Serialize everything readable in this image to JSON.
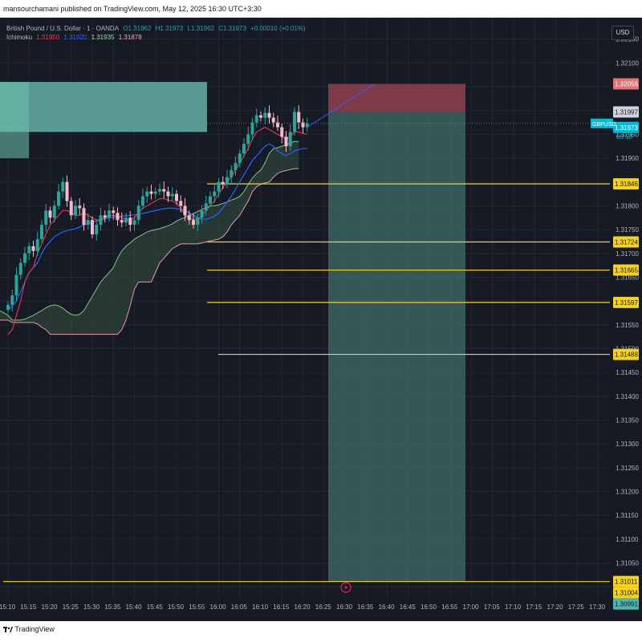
{
  "publisher_line": "mansourchamani published on TradingView.com, May 12, 2025 16:30 UTC+3:30",
  "legend": {
    "symbol_line": "British Pound / U.S. Dollar · 1 · OANDA",
    "ohlc": {
      "o": "O1.31962",
      "h": "H1.31973",
      "l": "L1.31962",
      "c": "C1.31973",
      "chg": "+0.00010 (+0.01%)"
    },
    "ichimoku_label": "Ichimoku",
    "ichimoku_values": [
      "1.31950",
      "1.31920",
      "1.31935",
      "1.31878"
    ]
  },
  "currency_button": "USD",
  "footer_brand": "TradingView",
  "price_badges": {
    "stop": "1.32056",
    "last": "1.31997",
    "symbol": "GBPUSD",
    "current": "1.31973",
    "countdown": "00:53",
    "bottom": [
      "1.31011",
      "1.31004",
      "1.30991"
    ]
  },
  "colors": {
    "background": "#161a25",
    "bull_candle": "#26a69a",
    "bear_candle": "#f7b8c8",
    "tenkan": "#e53950",
    "kijun": "#2962ff",
    "span_a": "#81c784",
    "span_b": "#e89aa4",
    "horizontal_level": "#f5d31c",
    "target_zone": "#4e8d84",
    "stop_zone": "#a04655",
    "demand_zone": "#6fc5b5"
  },
  "chart_data": {
    "type": "candlestick",
    "symbol": "GBPUSD",
    "timeframe": "1",
    "y_axis": {
      "ylim": [
        1.3097,
        1.32195
      ],
      "tick_labels": [
        "1.32150",
        "1.32100",
        "1.32050",
        "1.32000",
        "1.31950",
        "1.31900",
        "1.31850",
        "1.31800",
        "1.31750",
        "1.31700",
        "1.31650",
        "1.31600",
        "1.31550",
        "1.31500",
        "1.31450",
        "1.31400",
        "1.31350",
        "1.31300",
        "1.31250",
        "1.31200",
        "1.31150",
        "1.31100",
        "1.31050",
        "1.31000"
      ]
    },
    "x_axis": {
      "tick_labels": [
        "15:10",
        "15:15",
        "15:20",
        "15:25",
        "15:30",
        "15:35",
        "15:40",
        "15:45",
        "15:50",
        "15:55",
        "16:00",
        "16:05",
        "16:10",
        "16:15",
        "16:20",
        "16:25",
        "16:30",
        "16:35",
        "16:40",
        "16:45",
        "16:50",
        "16:55",
        "17:00",
        "17:05",
        "17:10",
        "17:15",
        "17:20",
        "17:25",
        "17:30"
      ],
      "start_minute": 0,
      "first_tick_minute": 0
    },
    "candles_close": [
      1.31592,
      1.31612,
      1.31655,
      1.3168,
      1.317,
      1.31715,
      1.31705,
      1.3173,
      1.3176,
      1.3179,
      1.31775,
      1.318,
      1.3183,
      1.3185,
      1.3181,
      1.3178,
      1.318,
      1.31795,
      1.3176,
      1.3177,
      1.3174,
      1.3176,
      1.3178,
      1.31775,
      1.3179,
      1.31785,
      1.3177,
      1.31765,
      1.31775,
      1.3176,
      1.3177,
      1.318,
      1.3182,
      1.3183,
      1.31825,
      1.3183,
      1.31835,
      1.3183,
      1.3182,
      1.31825,
      1.3181,
      1.318,
      1.3178,
      1.3177,
      1.3176,
      1.31775,
      1.3179,
      1.31805,
      1.3182,
      1.3183,
      1.3185,
      1.31845,
      1.3186,
      1.31875,
      1.3189,
      1.3191,
      1.3193,
      1.3195,
      1.31975,
      1.3199,
      1.31985,
      1.31995,
      1.31985,
      1.31975,
      1.31965,
      1.31945,
      1.31925,
      1.31955,
      1.31997,
      1.31975,
      1.31965,
      1.31973
    ],
    "ichimoku": {
      "tenkan": [
        1.3153,
        1.3154,
        1.3157,
        1.316,
        1.3164,
        1.3166,
        1.3167,
        1.317,
        1.3172,
        1.3174,
        1.3176,
        1.3177,
        1.3178,
        1.3179,
        1.3179,
        1.31785,
        1.3178,
        1.3178,
        1.31785,
        1.3178,
        1.31775,
        1.3177,
        1.3177,
        1.31775,
        1.3178,
        1.3178,
        1.31778,
        1.31775,
        1.3177,
        1.3177,
        1.31775,
        1.31785,
        1.31795,
        1.318,
        1.31805,
        1.3181,
        1.31815,
        1.31815,
        1.31812,
        1.3181,
        1.31805,
        1.31795,
        1.3178,
        1.31775,
        1.3177,
        1.31772,
        1.31778,
        1.3179,
        1.318,
        1.3181,
        1.31825,
        1.31838,
        1.3185,
        1.3186,
        1.31875,
        1.3189,
        1.31905,
        1.3192,
        1.3194,
        1.31955,
        1.3196,
        1.31965,
        1.3196,
        1.31955,
        1.3195,
        1.31945,
        1.3194,
        1.31945,
        1.31955,
        1.31955,
        1.31952,
        1.3195
      ],
      "kijun": [
        1.3158,
        1.3159,
        1.316,
        1.3162,
        1.3164,
        1.3166,
        1.3167,
        1.3168,
        1.317,
        1.31715,
        1.31725,
        1.31735,
        1.3174,
        1.31745,
        1.31748,
        1.3175,
        1.31752,
        1.31755,
        1.3176,
        1.31762,
        1.31765,
        1.31768,
        1.3177,
        1.31772,
        1.31775,
        1.31776,
        1.31777,
        1.31778,
        1.31779,
        1.3178,
        1.31781,
        1.31782,
        1.31784,
        1.31786,
        1.31788,
        1.3179,
        1.31792,
        1.31794,
        1.31795,
        1.31795,
        1.31794,
        1.31792,
        1.3179,
        1.31785,
        1.3178,
        1.31775,
        1.31772,
        1.31772,
        1.31774,
        1.31778,
        1.31785,
        1.31795,
        1.31808,
        1.3182,
        1.31835,
        1.3185,
        1.31865,
        1.3188,
        1.31895,
        1.31905,
        1.31915,
        1.31925,
        1.3193,
        1.31925,
        1.31915,
        1.3191,
        1.31905,
        1.3191,
        1.31915,
        1.31918,
        1.3192,
        1.3192
      ],
      "span_a": [
        1.3158,
        1.31575,
        1.3157,
        1.3156,
        1.3156,
        1.3156,
        1.31562,
        1.31566,
        1.3157,
        1.31575,
        1.3158,
        1.31586,
        1.3159,
        1.31592,
        1.3159,
        1.31585,
        1.31578,
        1.31572,
        1.3157,
        1.31572,
        1.3158,
        1.31595,
        1.3161,
        1.31625,
        1.3164,
        1.3165,
        1.3166,
        1.3167,
        1.3169,
        1.31705,
        1.31715,
        1.31722,
        1.3173,
        1.31735,
        1.3174,
        1.31745,
        1.31748,
        1.3175,
        1.31752,
        1.31755,
        1.31758,
        1.31762,
        1.31768,
        1.31772,
        1.31776,
        1.3178,
        1.31784,
        1.31788,
        1.31792,
        1.31796,
        1.318,
        1.318,
        1.31802,
        1.31805,
        1.31808,
        1.31812,
        1.31815,
        1.3182,
        1.3183,
        1.31845,
        1.31858,
        1.31868,
        1.31875,
        1.3189,
        1.3191,
        1.3192,
        1.31922,
        1.31925,
        1.31928,
        1.31932,
        1.31935,
        1.31935
      ],
      "span_b": [
        1.3156,
        1.3156,
        1.3156,
        1.31555,
        1.31555,
        1.31555,
        1.31555,
        1.31555,
        1.31555,
        1.31552,
        1.31545,
        1.3154,
        1.3153,
        1.3153,
        1.3153,
        1.3153,
        1.3153,
        1.3153,
        1.3153,
        1.3153,
        1.3153,
        1.3153,
        1.3153,
        1.3153,
        1.3153,
        1.3153,
        1.3153,
        1.3153,
        1.3153,
        1.3154,
        1.3156,
        1.3159,
        1.31625,
        1.3164,
        1.3164,
        1.3164,
        1.3164,
        1.3166,
        1.3168,
        1.3169,
        1.317,
        1.3171,
        1.31715,
        1.3172,
        1.3172,
        1.3172,
        1.3172,
        1.3172,
        1.31722,
        1.31724,
        1.31726,
        1.31728,
        1.3173,
        1.31735,
        1.31745,
        1.3176,
        1.3177,
        1.3178,
        1.31795,
        1.3181,
        1.3183,
        1.3184,
        1.31845,
        1.31848,
        1.3185,
        1.3186,
        1.31868,
        1.31872,
        1.31874,
        1.31876,
        1.31878,
        1.31878
      ]
    },
    "horizontal_levels": [
      1.31846,
      1.31724,
      1.31665,
      1.31597,
      1.31488,
      1.31011,
      1.31004
    ],
    "position": {
      "entry": 1.31997,
      "stop": 1.32056,
      "target": 1.31011
    },
    "demand_zone": {
      "top": 1.3206,
      "bottom": 1.31955
    }
  }
}
